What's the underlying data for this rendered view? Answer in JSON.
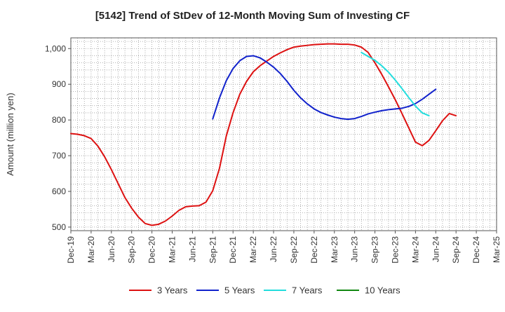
{
  "chart_data": {
    "type": "line",
    "title": "[5142]  Trend of StDev of 12-Month Moving Sum of Investing CF",
    "xlabel": "",
    "ylabel": "Amount (million yen)",
    "ylim": [
      490,
      1030
    ],
    "yticks": [
      500,
      600,
      700,
      800,
      900,
      1000
    ],
    "ytick_labels": [
      "500",
      "600",
      "700",
      "800",
      "900",
      "1,000"
    ],
    "xticks": [
      "Dec-19",
      "Mar-20",
      "Jun-20",
      "Sep-20",
      "Dec-20",
      "Mar-21",
      "Jun-21",
      "Sep-21",
      "Dec-21",
      "Mar-22",
      "Jun-22",
      "Sep-22",
      "Dec-22",
      "Mar-23",
      "Jun-23",
      "Sep-23",
      "Dec-23",
      "Mar-24",
      "Jun-24",
      "Sep-24",
      "Dec-24",
      "Mar-25"
    ],
    "grid": true,
    "legend_position": "bottom",
    "series": [
      {
        "name": "3 Years",
        "color": "#dd1111",
        "start_index": 0,
        "values": [
          762,
          760,
          756,
          748,
          727,
          697,
          661,
          622,
          583,
          553,
          528,
          510,
          505,
          508,
          517,
          531,
          547,
          557,
          559,
          560,
          570,
          602,
          665,
          755,
          820,
          872,
          908,
          935,
          952,
          965,
          978,
          988,
          997,
          1004,
          1007,
          1009,
          1011,
          1012,
          1013,
          1013,
          1012,
          1012,
          1010,
          1004,
          989,
          960,
          928,
          893,
          857,
          818,
          778,
          738,
          728,
          743,
          770,
          798,
          818,
          812
        ]
      },
      {
        "name": "5 Years",
        "color": "#1122cc",
        "start_index": 21,
        "values": [
          803,
          862,
          910,
          944,
          966,
          978,
          980,
          974,
          962,
          948,
          930,
          908,
          883,
          862,
          845,
          831,
          821,
          814,
          808,
          804,
          802,
          804,
          810,
          817,
          822,
          826,
          829,
          831,
          833,
          838,
          846,
          858,
          872,
          886
        ]
      },
      {
        "name": "7 Years",
        "color": "#22dddd",
        "start_index": 43,
        "values": [
          989,
          978,
          967,
          952,
          934,
          912,
          888,
          863,
          839,
          820,
          812
        ]
      },
      {
        "name": "10 Years",
        "color": "#118811",
        "start_index": null,
        "values": []
      }
    ]
  }
}
